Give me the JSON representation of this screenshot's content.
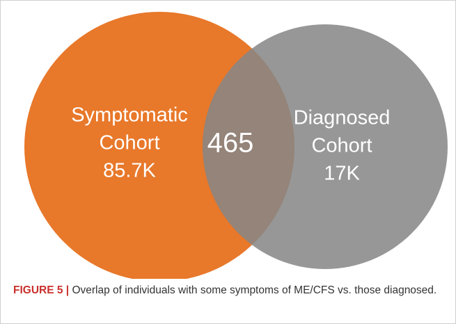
{
  "sets": [
    {
      "label_lines": [
        "Symptomatic",
        "Cohort"
      ],
      "count": "85.7K"
    },
    {
      "label_lines": [
        "Diagnosed",
        "Cohort"
      ],
      "count": "17K"
    }
  ],
  "intersection": "465",
  "caption": {
    "label": "FIGURE 5 |",
    "text": "Overlap of individuals with some symptoms of ME/CFS vs. those diagnosed."
  }
}
